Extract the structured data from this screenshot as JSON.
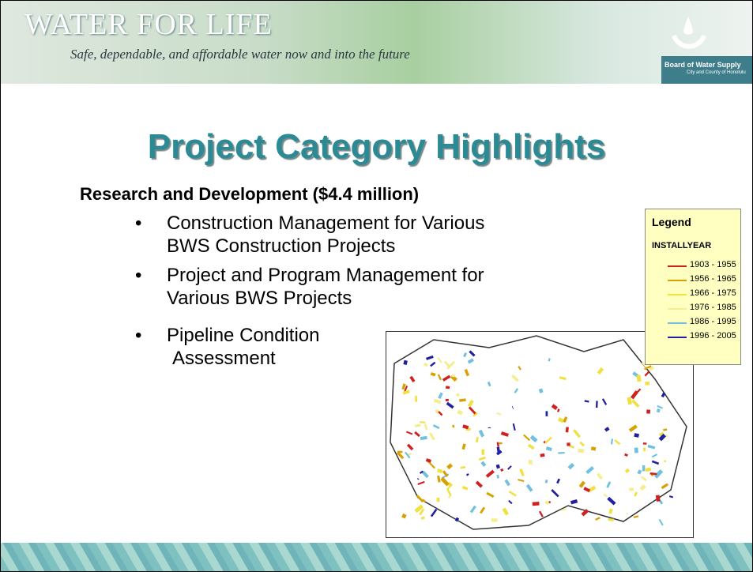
{
  "header": {
    "title": "WATER FOR LIFE",
    "tagline": "Safe, dependable, and affordable water now and into the future",
    "logo_text": "Board of Water Supply",
    "logo_subtext": "City and County of Honolulu"
  },
  "slide": {
    "title": "Project Category Highlights",
    "heading": "Research and Development ($4.4 million)",
    "bullets": [
      {
        "lines": [
          "Construction Management for Various",
          "BWS Construction Projects"
        ]
      },
      {
        "lines": [
          "Project and Program Management for",
          "Various BWS Projects"
        ]
      },
      {
        "lines": [
          "Pipeline Condition",
          "Assessment"
        ]
      }
    ]
  },
  "legend": {
    "title": "Legend",
    "field": "INSTALLYEAR",
    "items": [
      {
        "label": "1903 - 1955",
        "color": "#d02020"
      },
      {
        "label": "1956 - 1965",
        "color": "#d8a000"
      },
      {
        "label": "1966 - 1975",
        "color": "#f0e040"
      },
      {
        "label": "1976 - 1985",
        "color": "#f5ee90"
      },
      {
        "label": "1986 - 1995",
        "color": "#70c0e0"
      },
      {
        "label": "1996 - 2005",
        "color": "#2020a0"
      }
    ]
  }
}
